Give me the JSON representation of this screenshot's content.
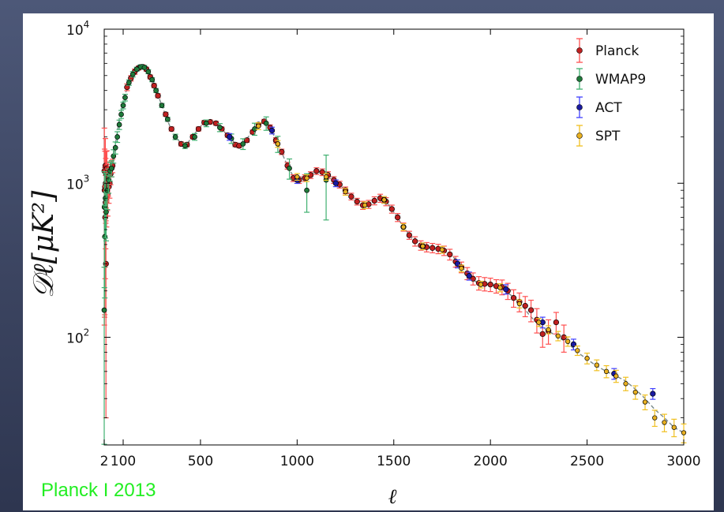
{
  "caption": "Planck I 2013",
  "colors": {
    "model_line": "#7a8a8a",
    "Planck": "#c02020",
    "Planck_err": "#ff5050",
    "WMAP9": "#1f7a3a",
    "WMAP9_err": "#40b070",
    "ACT": "#1a1aa0",
    "ACT_err": "#4040ff",
    "SPT": "#222222",
    "SPT_face": "#e8b020",
    "SPT_err": "#f0c020"
  },
  "chart_data": {
    "type": "scatter",
    "title": "",
    "xlabel": "ℓ",
    "ylabel": "𝒟ℓ[μK²]",
    "yscale": "log",
    "xlim": [
      2,
      3000
    ],
    "ylim": [
      20,
      10000
    ],
    "x_ticks": [
      2,
      100,
      500,
      1000,
      1500,
      2000,
      2500,
      3000
    ],
    "y_ticks": [
      {
        "value": 100,
        "base": "10",
        "exp": "2"
      },
      {
        "value": 1000,
        "base": "10",
        "exp": "3"
      },
      {
        "value": 10000,
        "base": "10",
        "exp": "4"
      }
    ],
    "legend_position": "top-right",
    "legend": [
      "Planck",
      "WMAP9",
      "ACT",
      "SPT"
    ],
    "model_curve": [
      [
        2,
        1000
      ],
      [
        10,
        900
      ],
      [
        25,
        1050
      ],
      [
        50,
        1500
      ],
      [
        80,
        2600
      ],
      [
        110,
        3800
      ],
      [
        150,
        5000
      ],
      [
        180,
        5600
      ],
      [
        200,
        5700
      ],
      [
        220,
        5600
      ],
      [
        250,
        4700
      ],
      [
        300,
        3200
      ],
      [
        350,
        2200
      ],
      [
        400,
        1800
      ],
      [
        430,
        1800
      ],
      [
        470,
        2100
      ],
      [
        520,
        2500
      ],
      [
        560,
        2500
      ],
      [
        600,
        2300
      ],
      [
        650,
        2000
      ],
      [
        690,
        1750
      ],
      [
        720,
        1800
      ],
      [
        760,
        2100
      ],
      [
        800,
        2400
      ],
      [
        830,
        2500
      ],
      [
        860,
        2300
      ],
      [
        900,
        1800
      ],
      [
        950,
        1300
      ],
      [
        990,
        1050
      ],
      [
        1050,
        1100
      ],
      [
        1100,
        1200
      ],
      [
        1150,
        1150
      ],
      [
        1200,
        1050
      ],
      [
        1250,
        900
      ],
      [
        1300,
        780
      ],
      [
        1350,
        720
      ],
      [
        1400,
        750
      ],
      [
        1430,
        800
      ],
      [
        1460,
        760
      ],
      [
        1500,
        650
      ],
      [
        1550,
        520
      ],
      [
        1600,
        430
      ],
      [
        1650,
        390
      ],
      [
        1700,
        380
      ],
      [
        1750,
        370
      ],
      [
        1800,
        340
      ],
      [
        1850,
        290
      ],
      [
        1900,
        240
      ],
      [
        1950,
        220
      ],
      [
        2000,
        220
      ],
      [
        2050,
        210
      ],
      [
        2100,
        190
      ],
      [
        2150,
        170
      ],
      [
        2200,
        140
      ],
      [
        2250,
        120
      ],
      [
        2300,
        110
      ],
      [
        2350,
        100
      ],
      [
        2400,
        92
      ],
      [
        2450,
        80
      ],
      [
        2500,
        72
      ],
      [
        2550,
        65
      ],
      [
        2600,
        60
      ],
      [
        2650,
        56
      ],
      [
        2700,
        52
      ],
      [
        2750,
        46
      ],
      [
        2800,
        40
      ],
      [
        2850,
        34
      ],
      [
        2900,
        30
      ],
      [
        2950,
        26
      ],
      [
        3000,
        24
      ]
    ],
    "series": [
      {
        "name": "Planck",
        "points": [
          [
            3,
            1200,
            0.9
          ],
          [
            4,
            900,
            0.85
          ],
          [
            5,
            700,
            0.8
          ],
          [
            6,
            950,
            0.7
          ],
          [
            7,
            600,
            0.6
          ],
          [
            8,
            1300,
            0.5
          ],
          [
            9,
            750,
            0.5
          ],
          [
            10,
            1000,
            0.45
          ],
          [
            11,
            300,
            0.9
          ],
          [
            12,
            1150,
            0.4
          ],
          [
            14,
            800,
            0.35
          ],
          [
            16,
            1250,
            0.3
          ],
          [
            18,
            950,
            0.3
          ],
          [
            20,
            850,
            0.28
          ],
          [
            23,
            1100,
            0.25
          ],
          [
            26,
            950,
            0.22
          ],
          [
            30,
            1000,
            0.2
          ],
          [
            35,
            1150,
            0.15
          ],
          [
            40,
            1250,
            0.12
          ],
          [
            45,
            1300,
            0.1
          ],
          [
            120,
            4200,
            0.05
          ],
          [
            140,
            4800,
            0.04
          ],
          [
            160,
            5300,
            0.04
          ],
          [
            180,
            5600,
            0.03
          ],
          [
            200,
            5700,
            0.03
          ],
          [
            220,
            5500,
            0.03
          ],
          [
            240,
            4900,
            0.03
          ],
          [
            260,
            4300,
            0.03
          ],
          [
            280,
            3700,
            0.03
          ],
          [
            320,
            2800,
            0.03
          ],
          [
            350,
            2250,
            0.03
          ],
          [
            400,
            1800,
            0.03
          ],
          [
            430,
            1780,
            0.03
          ],
          [
            460,
            2000,
            0.03
          ],
          [
            490,
            2250,
            0.03
          ],
          [
            520,
            2480,
            0.03
          ],
          [
            550,
            2500,
            0.03
          ],
          [
            580,
            2450,
            0.03
          ],
          [
            610,
            2250,
            0.03
          ],
          [
            640,
            2050,
            0.03
          ],
          [
            680,
            1780,
            0.03
          ],
          [
            700,
            1750,
            0.03
          ],
          [
            740,
            1900,
            0.03
          ],
          [
            770,
            2150,
            0.03
          ],
          [
            800,
            2400,
            0.03
          ],
          [
            830,
            2520,
            0.03
          ],
          [
            860,
            2300,
            0.04
          ],
          [
            890,
            1900,
            0.04
          ],
          [
            920,
            1600,
            0.04
          ],
          [
            950,
            1300,
            0.05
          ],
          [
            980,
            1080,
            0.05
          ],
          [
            1010,
            1050,
            0.05
          ],
          [
            1040,
            1080,
            0.05
          ],
          [
            1070,
            1130,
            0.05
          ],
          [
            1100,
            1200,
            0.05
          ],
          [
            1130,
            1180,
            0.05
          ],
          [
            1160,
            1130,
            0.05
          ],
          [
            1190,
            1050,
            0.05
          ],
          [
            1220,
            980,
            0.05
          ],
          [
            1250,
            900,
            0.05
          ],
          [
            1280,
            820,
            0.05
          ],
          [
            1310,
            760,
            0.05
          ],
          [
            1340,
            720,
            0.06
          ],
          [
            1370,
            730,
            0.06
          ],
          [
            1400,
            770,
            0.06
          ],
          [
            1430,
            800,
            0.06
          ],
          [
            1460,
            760,
            0.06
          ],
          [
            1490,
            680,
            0.06
          ],
          [
            1520,
            600,
            0.06
          ],
          [
            1550,
            520,
            0.06
          ],
          [
            1580,
            460,
            0.06
          ],
          [
            1610,
            420,
            0.07
          ],
          [
            1640,
            395,
            0.07
          ],
          [
            1670,
            385,
            0.07
          ],
          [
            1700,
            380,
            0.07
          ],
          [
            1730,
            375,
            0.07
          ],
          [
            1760,
            365,
            0.07
          ],
          [
            1790,
            345,
            0.08
          ],
          [
            1820,
            310,
            0.08
          ],
          [
            1850,
            285,
            0.08
          ],
          [
            1880,
            260,
            0.09
          ],
          [
            1910,
            240,
            0.09
          ],
          [
            1940,
            225,
            0.1
          ],
          [
            1970,
            222,
            0.1
          ],
          [
            2000,
            220,
            0.1
          ],
          [
            2030,
            215,
            0.1
          ],
          [
            2060,
            212,
            0.11
          ],
          [
            2090,
            200,
            0.12
          ],
          [
            2120,
            180,
            0.13
          ],
          [
            2150,
            170,
            0.14
          ],
          [
            2180,
            160,
            0.15
          ],
          [
            2210,
            150,
            0.16
          ],
          [
            2240,
            130,
            0.18
          ],
          [
            2270,
            105,
            0.18
          ],
          [
            2300,
            110,
            0.18
          ],
          [
            2340,
            125,
            0.16
          ],
          [
            2380,
            100,
            0.2
          ]
        ]
      },
      {
        "name": "WMAP9",
        "points": [
          [
            2,
            150,
            0.9
          ],
          [
            3,
            700,
            0.7
          ],
          [
            5,
            450,
            0.6
          ],
          [
            8,
            800,
            0.45
          ],
          [
            12,
            650,
            0.35
          ],
          [
            18,
            900,
            0.25
          ],
          [
            25,
            1050,
            0.18
          ],
          [
            32,
            1200,
            0.14
          ],
          [
            40,
            1250,
            0.12
          ],
          [
            50,
            1500,
            0.1
          ],
          [
            60,
            1700,
            0.09
          ],
          [
            70,
            2000,
            0.08
          ],
          [
            80,
            2400,
            0.07
          ],
          [
            90,
            2800,
            0.06
          ],
          [
            100,
            3200,
            0.05
          ],
          [
            110,
            3600,
            0.05
          ],
          [
            130,
            4500,
            0.04
          ],
          [
            150,
            5100,
            0.04
          ],
          [
            170,
            5500,
            0.03
          ],
          [
            190,
            5700,
            0.03
          ],
          [
            210,
            5650,
            0.03
          ],
          [
            230,
            5300,
            0.03
          ],
          [
            250,
            4700,
            0.03
          ],
          [
            270,
            4000,
            0.03
          ],
          [
            300,
            3200,
            0.03
          ],
          [
            330,
            2600,
            0.03
          ],
          [
            370,
            2000,
            0.04
          ],
          [
            420,
            1750,
            0.04
          ],
          [
            470,
            2000,
            0.05
          ],
          [
            530,
            2450,
            0.05
          ],
          [
            600,
            2300,
            0.06
          ],
          [
            660,
            1950,
            0.07
          ],
          [
            720,
            1800,
            0.08
          ],
          [
            780,
            2250,
            0.09
          ],
          [
            840,
            2450,
            0.1
          ],
          [
            900,
            1800,
            0.12
          ],
          [
            960,
            1250,
            0.15
          ],
          [
            1050,
            900,
            0.28
          ],
          [
            1150,
            1050,
            0.45
          ]
        ]
      },
      {
        "name": "ACT",
        "points": [
          [
            650,
            2000,
            0.05
          ],
          [
            870,
            2200,
            0.05
          ],
          [
            1000,
            1050,
            0.05
          ],
          [
            1200,
            1000,
            0.05
          ],
          [
            1450,
            780,
            0.05
          ],
          [
            1650,
            390,
            0.05
          ],
          [
            1830,
            300,
            0.06
          ],
          [
            1890,
            250,
            0.06
          ],
          [
            2080,
            205,
            0.07
          ],
          [
            2270,
            125,
            0.08
          ],
          [
            2430,
            90,
            0.08
          ],
          [
            2640,
            58,
            0.08
          ],
          [
            2840,
            43,
            0.08
          ]
        ]
      },
      {
        "name": "SPT",
        "points": [
          [
            800,
            2350,
            0.05
          ],
          [
            900,
            1800,
            0.05
          ],
          [
            1000,
            1100,
            0.05
          ],
          [
            1050,
            1080,
            0.05
          ],
          [
            1150,
            1100,
            0.05
          ],
          [
            1250,
            880,
            0.05
          ],
          [
            1350,
            720,
            0.05
          ],
          [
            1450,
            780,
            0.05
          ],
          [
            1550,
            520,
            0.05
          ],
          [
            1650,
            390,
            0.05
          ],
          [
            1750,
            370,
            0.05
          ],
          [
            1850,
            280,
            0.05
          ],
          [
            1950,
            220,
            0.05
          ],
          [
            2050,
            210,
            0.06
          ],
          [
            2150,
            165,
            0.06
          ],
          [
            2250,
            125,
            0.06
          ],
          [
            2300,
            112,
            0.06
          ],
          [
            2350,
            102,
            0.07
          ],
          [
            2400,
            94,
            0.07
          ],
          [
            2450,
            82,
            0.07
          ],
          [
            2500,
            73,
            0.08
          ],
          [
            2550,
            66,
            0.08
          ],
          [
            2600,
            60,
            0.09
          ],
          [
            2650,
            56,
            0.09
          ],
          [
            2700,
            50,
            0.1
          ],
          [
            2750,
            44,
            0.1
          ],
          [
            2800,
            38,
            0.11
          ],
          [
            2850,
            30,
            0.12
          ],
          [
            2900,
            28,
            0.13
          ],
          [
            2950,
            26,
            0.13
          ],
          [
            3000,
            24,
            0.14
          ]
        ]
      }
    ]
  }
}
